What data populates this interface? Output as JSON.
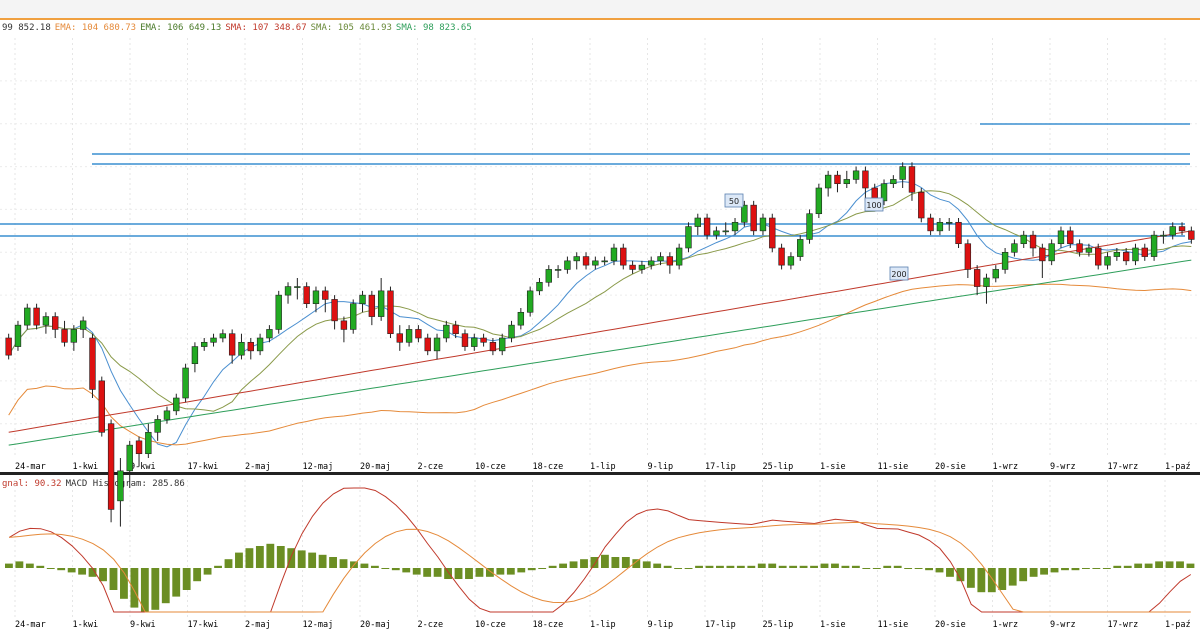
{
  "legend_main": [
    {
      "text": "99 852.18",
      "color": "#333333"
    },
    {
      "text": "EMA: 104 680.73",
      "color": "#e58a3a"
    },
    {
      "text": "EMA: 106 649.13",
      "color": "#4a7a2a"
    },
    {
      "text": "SMA: 107 348.67",
      "color": "#c0392b"
    },
    {
      "text": "SMA: 105 461.93",
      "color": "#6a8a3a"
    },
    {
      "text": "SMA: 98 823.65",
      "color": "#2e9e5a"
    }
  ],
  "legend_macd": [
    {
      "text": "gnal: 90.32",
      "color": "#c0392b"
    },
    {
      "text": "MACD Histogram: 285.86",
      "color": "#333333"
    }
  ],
  "colors": {
    "up": "#22aa22",
    "down": "#dd1111",
    "ma50": "#4a8fd0",
    "ma100": "#e58a3a",
    "ma200": "#c0392b",
    "ma_green": "#2e9e5a",
    "ma_olive": "#8a9a4a",
    "hline": "#3a8fd0",
    "hist": "#6b8e23",
    "macd": "#c0392b",
    "signal": "#e58a3a"
  },
  "ma_tags": [
    "50",
    "100",
    "200"
  ],
  "chart_data": {
    "type": "candlestick",
    "x_ticks": [
      "24-mar",
      "1-kwi",
      "9-kwi",
      "17-kwi",
      "2-maj",
      "12-maj",
      "20-maj",
      "2-cze",
      "10-cze",
      "18-cze",
      "1-lip",
      "9-lip",
      "17-lip",
      "25-lip",
      "1-sie",
      "11-sie",
      "20-sie",
      "1-wrz",
      "9-wrz",
      "17-wrz",
      "1-paź"
    ],
    "y_range": [
      72,
      170
    ],
    "candles": [
      [
        100,
        96,
        101,
        95
      ],
      [
        98,
        103,
        104,
        97
      ],
      [
        103,
        107,
        108,
        102
      ],
      [
        107,
        103,
        108,
        102
      ],
      [
        103,
        105,
        106,
        101
      ],
      [
        105,
        102,
        106,
        100
      ],
      [
        102,
        99,
        104,
        98
      ],
      [
        99,
        102,
        103,
        97
      ],
      [
        102,
        104,
        105,
        100
      ],
      [
        100,
        88,
        101,
        86
      ],
      [
        90,
        78,
        91,
        77
      ],
      [
        80,
        60,
        81,
        57
      ],
      [
        62,
        69,
        72,
        56
      ],
      [
        69,
        75,
        76,
        65
      ],
      [
        76,
        73,
        77,
        70
      ],
      [
        73,
        78,
        80,
        72
      ],
      [
        78,
        81,
        82,
        76
      ],
      [
        81,
        83,
        84,
        80
      ],
      [
        83,
        86,
        87,
        82
      ],
      [
        86,
        93,
        94,
        85
      ],
      [
        94,
        98,
        99,
        92
      ],
      [
        98,
        99,
        100,
        97
      ],
      [
        99,
        100,
        101,
        98
      ],
      [
        100,
        101,
        102,
        99
      ],
      [
        101,
        96,
        102,
        94
      ],
      [
        96,
        99,
        101,
        95
      ],
      [
        99,
        97,
        100,
        95
      ],
      [
        97,
        100,
        101,
        96
      ],
      [
        100,
        102,
        103,
        99
      ],
      [
        102,
        110,
        111,
        101
      ],
      [
        110,
        112,
        113,
        108
      ],
      [
        112,
        112,
        114,
        109
      ],
      [
        112,
        108,
        113,
        107
      ],
      [
        108,
        111,
        112,
        106
      ],
      [
        111,
        109,
        112,
        106
      ],
      [
        109,
        104,
        110,
        102
      ],
      [
        104,
        102,
        105,
        99
      ],
      [
        102,
        108,
        109,
        101
      ],
      [
        108,
        110,
        111,
        106
      ],
      [
        110,
        105,
        111,
        103
      ],
      [
        105,
        111,
        114,
        104
      ],
      [
        111,
        101,
        112,
        100
      ],
      [
        101,
        99,
        103,
        97
      ],
      [
        99,
        102,
        103,
        98
      ],
      [
        102,
        100,
        103,
        99
      ],
      [
        100,
        97,
        101,
        96
      ],
      [
        97,
        100,
        101,
        95
      ],
      [
        100,
        103,
        104,
        99
      ],
      [
        103,
        101,
        104,
        100
      ],
      [
        101,
        98,
        102,
        97
      ],
      [
        98,
        100,
        101,
        97
      ],
      [
        100,
        99,
        101,
        98
      ],
      [
        99,
        97,
        100,
        96
      ],
      [
        97,
        100,
        101,
        96
      ],
      [
        100,
        103,
        104,
        99
      ],
      [
        103,
        106,
        107,
        102
      ],
      [
        106,
        111,
        112,
        105
      ],
      [
        111,
        113,
        114,
        110
      ],
      [
        113,
        116,
        117,
        112
      ],
      [
        116,
        116,
        117,
        114
      ],
      [
        116,
        118,
        119,
        115
      ],
      [
        118,
        119,
        120,
        116
      ],
      [
        119,
        117,
        120,
        116
      ],
      [
        117,
        118,
        119,
        116
      ],
      [
        118,
        118,
        119,
        117
      ],
      [
        118,
        121,
        122,
        117
      ],
      [
        121,
        117,
        122,
        116
      ],
      [
        117,
        116,
        118,
        115
      ],
      [
        116,
        117,
        118,
        115
      ],
      [
        117,
        118,
        119,
        116
      ],
      [
        118,
        119,
        120,
        117
      ],
      [
        119,
        117,
        120,
        115
      ],
      [
        117,
        121,
        122,
        116
      ],
      [
        121,
        126,
        127,
        120
      ],
      [
        126,
        128,
        129,
        124
      ],
      [
        128,
        124,
        129,
        123
      ],
      [
        124,
        125,
        126,
        123
      ],
      [
        125,
        125,
        127,
        124
      ],
      [
        125,
        127,
        128,
        124
      ],
      [
        127,
        131,
        132,
        126
      ],
      [
        131,
        125,
        132,
        124
      ],
      [
        125,
        128,
        129,
        124
      ],
      [
        128,
        121,
        129,
        120
      ],
      [
        121,
        117,
        122,
        116
      ],
      [
        117,
        119,
        120,
        116
      ],
      [
        119,
        123,
        124,
        118
      ],
      [
        123,
        129,
        130,
        122
      ],
      [
        129,
        135,
        136,
        128
      ],
      [
        135,
        138,
        139,
        133
      ],
      [
        138,
        136,
        139,
        134
      ],
      [
        136,
        137,
        139,
        135
      ],
      [
        137,
        139,
        140,
        136
      ],
      [
        139,
        135,
        140,
        132
      ],
      [
        135,
        132,
        136,
        131
      ],
      [
        132,
        136,
        137,
        131
      ],
      [
        136,
        137,
        138,
        135
      ],
      [
        137,
        140,
        141,
        135
      ],
      [
        140,
        134,
        141,
        132
      ],
      [
        134,
        128,
        135,
        127
      ],
      [
        128,
        125,
        129,
        124
      ],
      [
        125,
        127,
        128,
        124
      ],
      [
        127,
        127,
        128,
        125
      ],
      [
        127,
        122,
        128,
        121
      ],
      [
        122,
        116,
        123,
        114
      ],
      [
        116,
        112,
        117,
        110
      ],
      [
        112,
        114,
        115,
        108
      ],
      [
        114,
        116,
        117,
        113
      ],
      [
        116,
        120,
        121,
        115
      ],
      [
        120,
        122,
        123,
        119
      ],
      [
        122,
        124,
        125,
        121
      ],
      [
        124,
        121,
        125,
        119
      ],
      [
        121,
        118,
        122,
        114
      ],
      [
        118,
        122,
        123,
        117
      ],
      [
        122,
        125,
        126,
        121
      ],
      [
        125,
        122,
        126,
        121
      ],
      [
        122,
        120,
        123,
        119
      ],
      [
        120,
        121,
        122,
        119
      ],
      [
        121,
        117,
        122,
        116
      ],
      [
        117,
        119,
        120,
        116
      ],
      [
        119,
        120,
        121,
        118
      ],
      [
        120,
        118,
        121,
        117
      ],
      [
        118,
        121,
        122,
        117
      ],
      [
        121,
        119,
        122,
        118
      ],
      [
        119,
        124,
        125,
        118
      ],
      [
        124,
        124,
        125,
        122
      ],
      [
        124,
        126,
        127,
        123
      ],
      [
        126,
        125,
        127,
        124
      ],
      [
        125,
        123,
        126,
        122
      ]
    ],
    "indicators": {
      "ema_fast": "blue",
      "ema_slow": "olive",
      "sma_100": "orange",
      "sma_200": "red",
      "sma_green": "green"
    },
    "macd": {
      "histogram": [
        2,
        3,
        2,
        1,
        0,
        -1,
        -2,
        -3,
        -4,
        -6,
        -10,
        -14,
        -18,
        -20,
        -19,
        -16,
        -13,
        -10,
        -6,
        -3,
        1,
        4,
        7,
        9,
        10,
        11,
        10,
        9,
        8,
        7,
        6,
        5,
        4,
        3,
        2,
        1,
        0,
        -1,
        -2,
        -3,
        -4,
        -4,
        -5,
        -5,
        -5,
        -4,
        -4,
        -3,
        -3,
        -2,
        -1,
        0,
        1,
        2,
        3,
        4,
        5,
        6,
        5,
        5,
        4,
        3,
        2,
        1,
        0,
        0,
        1,
        1,
        1,
        1,
        1,
        1,
        2,
        2,
        1,
        1,
        1,
        1,
        2,
        2,
        1,
        1,
        0,
        0,
        1,
        1,
        0,
        0,
        -1,
        -2,
        -4,
        -6,
        -9,
        -11,
        -11,
        -10,
        -8,
        -6,
        -4,
        -3,
        -2,
        -1,
        -1,
        0,
        0,
        0,
        1,
        1,
        2,
        2,
        3,
        3,
        3,
        2
      ]
    }
  }
}
